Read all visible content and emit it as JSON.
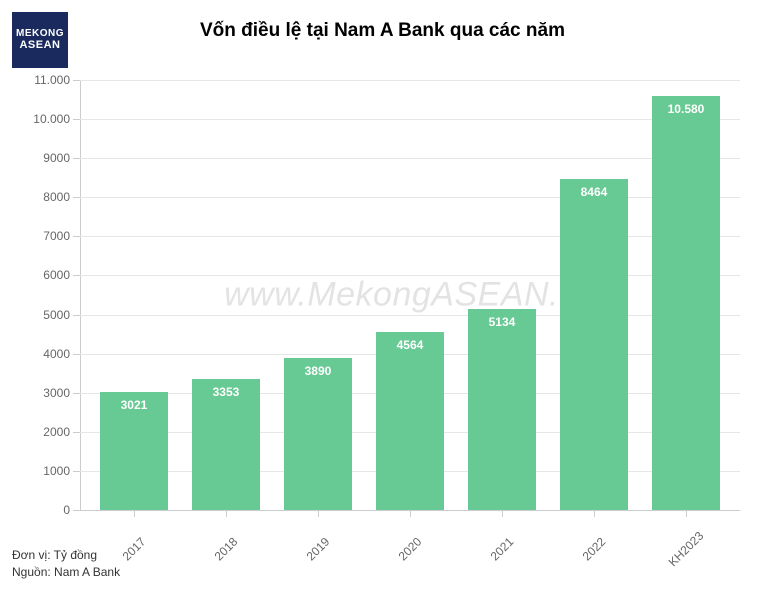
{
  "logo": {
    "line1": "MEKONG",
    "line2": "ASEAN"
  },
  "chart": {
    "type": "bar",
    "title": "Vốn điều lệ tại Nam A Bank qua các năm",
    "title_fontsize": 19,
    "title_color": "#000000",
    "background_color": "#ffffff",
    "bar_color": "#67c993",
    "bar_label_color": "#ffffff",
    "bar_label_fontsize": 12,
    "bar_label_fontweight": "bold",
    "grid_color": "#e6e6e6",
    "axis_color": "#cccccc",
    "tick_label_color": "#666666",
    "tick_label_fontsize": 12,
    "bar_width": 0.74,
    "ylim": [
      0,
      11000
    ],
    "yticks": [
      {
        "value": 0,
        "label": "0"
      },
      {
        "value": 1000,
        "label": "1000"
      },
      {
        "value": 2000,
        "label": "2000"
      },
      {
        "value": 3000,
        "label": "3000"
      },
      {
        "value": 4000,
        "label": "4000"
      },
      {
        "value": 5000,
        "label": "5000"
      },
      {
        "value": 6000,
        "label": "6000"
      },
      {
        "value": 7000,
        "label": "7000"
      },
      {
        "value": 8000,
        "label": "8000"
      },
      {
        "value": 9000,
        "label": "9000"
      },
      {
        "value": 10000,
        "label": "10.000"
      },
      {
        "value": 11000,
        "label": "11.000"
      }
    ],
    "categories": [
      "2017",
      "2018",
      "2019",
      "2020",
      "2021",
      "2022",
      "KH2023"
    ],
    "values": [
      3021,
      3353,
      3890,
      4564,
      5134,
      8464,
      10580
    ],
    "value_labels": [
      "3021",
      "3353",
      "3890",
      "4564",
      "5134",
      "8464",
      "10.580"
    ],
    "watermark": "www.MekongASEAN.vn",
    "watermark_color": "rgba(102,102,102,0.18)",
    "watermark_fontsize": 34
  },
  "footer": {
    "unit_label": "Đơn vị: Tỷ đồng",
    "source_label": "Nguồn: Nam A Bank",
    "fontsize": 12,
    "color": "#333333"
  }
}
